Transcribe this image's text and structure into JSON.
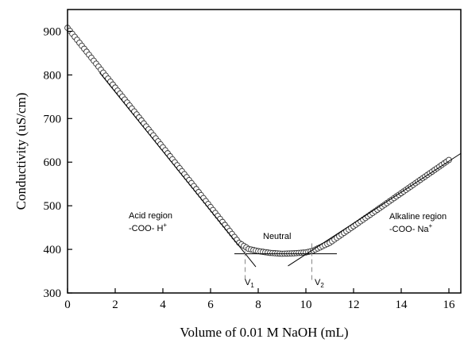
{
  "chart_data": {
    "type": "scatter",
    "xlabel": "Volume of 0.01 M NaOH (mL)",
    "ylabel": "Conductivity (uS/cm)",
    "xlim": [
      0,
      16.5
    ],
    "ylim": [
      300,
      950
    ],
    "xticks": [
      0,
      2,
      4,
      6,
      8,
      10,
      12,
      14,
      16
    ],
    "yticks": [
      300,
      400,
      500,
      600,
      700,
      800,
      900
    ],
    "grid": false,
    "marker": "open-circle",
    "colors": {
      "marker": "#333333",
      "line": "#000000",
      "guide": "#888888"
    },
    "curve_knots": [
      [
        0.0,
        908
      ],
      [
        7.2,
        415
      ],
      [
        7.6,
        401
      ],
      [
        8.0,
        396
      ],
      [
        8.5,
        392
      ],
      [
        9.0,
        390
      ],
      [
        9.5,
        391
      ],
      [
        10.0,
        393
      ],
      [
        10.3,
        397
      ],
      [
        11.0,
        415
      ],
      [
        16.0,
        605
      ]
    ],
    "fit_lines": [
      {
        "name": "acid-slope",
        "x": [
          1.35,
          7.9
        ],
        "y": [
          805,
          360
        ]
      },
      {
        "name": "neutral-plateau",
        "x": [
          7.0,
          11.3
        ],
        "y": [
          390,
          390
        ]
      },
      {
        "name": "alkaline-slope",
        "x": [
          9.25,
          16.5
        ],
        "y": [
          362,
          620
        ]
      }
    ],
    "guide_lines": [
      {
        "name": "v1-guide",
        "x": 7.45,
        "y": [
          330,
          405
        ]
      },
      {
        "name": "v2-guide",
        "x": 10.25,
        "y": [
          330,
          420
        ]
      }
    ],
    "annotations": {
      "acid_line1": "Acid region",
      "acid_line2_base": "-COO- H",
      "acid_line2_sup": "+",
      "neutral": "Neutral",
      "alkaline_line1": "Alkaline region",
      "alkaline_line2_base": "-COO- Na",
      "alkaline_line2_sup": "+",
      "v1_base": "V",
      "v1_sub": "1",
      "v2_base": "V",
      "v2_sub": "2"
    }
  }
}
